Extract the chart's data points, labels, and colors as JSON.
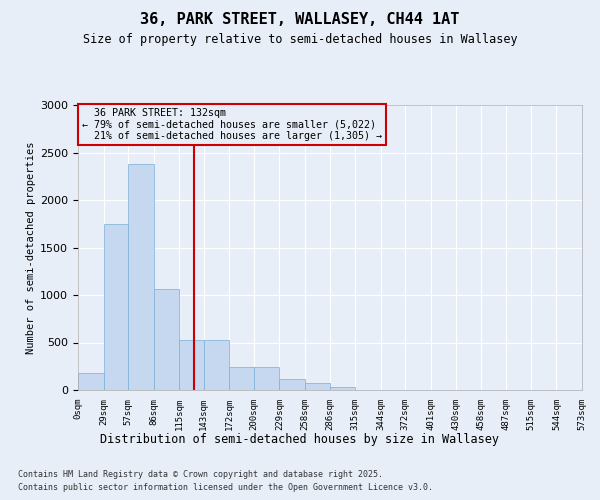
{
  "title": "36, PARK STREET, WALLASEY, CH44 1AT",
  "subtitle": "Size of property relative to semi-detached houses in Wallasey",
  "xlabel": "Distribution of semi-detached houses by size in Wallasey",
  "ylabel": "Number of semi-detached properties",
  "property_size": 132,
  "property_label": "36 PARK STREET: 132sqm",
  "pct_smaller": 79,
  "count_smaller": "5,022",
  "pct_larger": 21,
  "count_larger": "1,305",
  "bin_edges": [
    0,
    29,
    57,
    86,
    115,
    143,
    172,
    200,
    229,
    258,
    286,
    315,
    344,
    372,
    401,
    430,
    458,
    487,
    515,
    544,
    573
  ],
  "bin_labels": [
    "0sqm",
    "29sqm",
    "57sqm",
    "86sqm",
    "115sqm",
    "143sqm",
    "172sqm",
    "200sqm",
    "229sqm",
    "258sqm",
    "286sqm",
    "315sqm",
    "344sqm",
    "372sqm",
    "401sqm",
    "430sqm",
    "458sqm",
    "487sqm",
    "515sqm",
    "544sqm",
    "573sqm"
  ],
  "counts": [
    175,
    1750,
    2380,
    1060,
    530,
    530,
    245,
    245,
    115,
    75,
    30,
    5,
    0,
    0,
    0,
    0,
    0,
    0,
    0,
    0
  ],
  "bar_color": "#c5d8f0",
  "bar_edge_color": "#7aaed6",
  "vline_color": "#cc0000",
  "annotation_box_color": "#cc0000",
  "background_color": "#e8eef8",
  "grid_color": "#ffffff",
  "ylim": [
    0,
    3000
  ],
  "yticks": [
    0,
    500,
    1000,
    1500,
    2000,
    2500,
    3000
  ],
  "footer_line1": "Contains HM Land Registry data © Crown copyright and database right 2025.",
  "footer_line2": "Contains public sector information licensed under the Open Government Licence v3.0."
}
